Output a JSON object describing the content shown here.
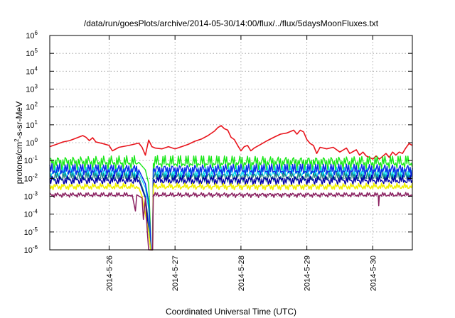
{
  "chart_data": {
    "type": "line",
    "title": "/data/run/goesPlots/archive/2014-05-30/14:00/flux/../flux/5daysMoonFluxes.txt",
    "xlabel": "Coordinated Universal Time (UTC)",
    "ylabel": {
      "prefix": "protons/cm",
      "sup": "2",
      "suffix": "-s-sr-MeV"
    },
    "y_scale": "log",
    "ylim": [
      1e-06,
      1000000.0
    ],
    "xlim": [
      25.1,
      30.6
    ],
    "y_ticks": [
      {
        "value": 1e-06,
        "base": "10",
        "exp": "-6"
      },
      {
        "value": 1e-05,
        "base": "10",
        "exp": "-5"
      },
      {
        "value": 0.0001,
        "base": "10",
        "exp": "-4"
      },
      {
        "value": 0.001,
        "base": "10",
        "exp": "-3"
      },
      {
        "value": 0.01,
        "base": "10",
        "exp": "-2"
      },
      {
        "value": 0.1,
        "base": "10",
        "exp": "-1"
      },
      {
        "value": 1,
        "base": "10",
        "exp": "0"
      },
      {
        "value": 10,
        "base": "10",
        "exp": "1"
      },
      {
        "value": 100,
        "base": "10",
        "exp": "2"
      },
      {
        "value": 1000,
        "base": "10",
        "exp": "3"
      },
      {
        "value": 10000,
        "base": "10",
        "exp": "4"
      },
      {
        "value": 100000,
        "base": "10",
        "exp": "5"
      },
      {
        "value": 1000000,
        "base": "10",
        "exp": "6"
      }
    ],
    "x_ticks": [
      {
        "value": 26,
        "label": "2014-5-26"
      },
      {
        "value": 27,
        "label": "2014-5-27"
      },
      {
        "value": 28,
        "label": "2014-5-28"
      },
      {
        "value": 29,
        "label": "2014-5-29"
      },
      {
        "value": 30,
        "label": "2014-5-30"
      }
    ],
    "grid": true,
    "series": [
      {
        "color": "#e8141c",
        "width": 1.6,
        "points": [
          [
            25.1,
            0.6
          ],
          [
            25.2,
            0.8
          ],
          [
            25.3,
            1.1
          ],
          [
            25.4,
            1.3
          ],
          [
            25.5,
            1.8
          ],
          [
            25.6,
            2.5
          ],
          [
            25.65,
            2.0
          ],
          [
            25.7,
            1.3
          ],
          [
            25.75,
            1.9
          ],
          [
            25.8,
            1.1
          ],
          [
            25.9,
            0.9
          ],
          [
            26.0,
            0.7
          ],
          [
            26.05,
            0.35
          ],
          [
            26.15,
            0.55
          ],
          [
            26.3,
            0.7
          ],
          [
            26.45,
            0.95
          ],
          [
            26.5,
            0.55
          ],
          [
            26.55,
            0.2
          ],
          [
            26.6,
            1.4
          ],
          [
            26.65,
            0.6
          ],
          [
            26.7,
            0.5
          ],
          [
            26.8,
            0.45
          ],
          [
            26.9,
            0.6
          ],
          [
            27.0,
            0.45
          ],
          [
            27.1,
            0.6
          ],
          [
            27.2,
            0.8
          ],
          [
            27.3,
            1.2
          ],
          [
            27.4,
            1.6
          ],
          [
            27.5,
            2.5
          ],
          [
            27.6,
            4.5
          ],
          [
            27.65,
            7.0
          ],
          [
            27.7,
            9.0
          ],
          [
            27.75,
            6.0
          ],
          [
            27.8,
            5.0
          ],
          [
            27.85,
            2.0
          ],
          [
            27.9,
            1.5
          ],
          [
            27.95,
            0.7
          ],
          [
            28.0,
            0.35
          ],
          [
            28.05,
            0.6
          ],
          [
            28.1,
            0.7
          ],
          [
            28.15,
            0.35
          ],
          [
            28.2,
            0.5
          ],
          [
            28.3,
            0.8
          ],
          [
            28.4,
            1.3
          ],
          [
            28.5,
            2.0
          ],
          [
            28.6,
            3.0
          ],
          [
            28.7,
            3.5
          ],
          [
            28.8,
            5.0
          ],
          [
            28.85,
            3.0
          ],
          [
            28.9,
            5.0
          ],
          [
            28.95,
            4.0
          ],
          [
            29.0,
            1.5
          ],
          [
            29.05,
            0.9
          ],
          [
            29.1,
            0.7
          ],
          [
            29.15,
            0.25
          ],
          [
            29.2,
            0.55
          ],
          [
            29.3,
            0.45
          ],
          [
            29.4,
            0.55
          ],
          [
            29.5,
            0.3
          ],
          [
            29.6,
            0.5
          ],
          [
            29.65,
            0.25
          ],
          [
            29.75,
            0.4
          ],
          [
            29.8,
            0.2
          ],
          [
            29.85,
            0.3
          ],
          [
            29.9,
            0.18
          ],
          [
            29.95,
            0.15
          ],
          [
            30.0,
            0.12
          ],
          [
            30.05,
            0.18
          ],
          [
            30.1,
            0.12
          ],
          [
            30.2,
            0.25
          ],
          [
            30.25,
            0.15
          ],
          [
            30.3,
            0.3
          ],
          [
            30.35,
            0.2
          ],
          [
            30.4,
            0.3
          ],
          [
            30.45,
            0.25
          ],
          [
            30.5,
            0.5
          ],
          [
            30.55,
            0.9
          ],
          [
            30.6,
            0.7
          ]
        ]
      },
      {
        "color": "#18e818",
        "width": 1.4,
        "base": 0.08,
        "amp": 0.45,
        "phase": 0.3,
        "dip": [
          [
            26.45,
            0.08
          ],
          [
            26.55,
            0.03
          ],
          [
            26.6,
            0.005
          ],
          [
            26.64,
            1e-06
          ],
          [
            26.66,
            1e-06
          ],
          [
            26.67,
            0.07
          ]
        ]
      },
      {
        "color": "#00d8f0",
        "width": 1.2,
        "base": 0.022,
        "amp": 0.35,
        "phase": 1.1,
        "dip": [
          [
            26.45,
            0.02
          ],
          [
            26.55,
            0.003
          ],
          [
            26.6,
            0.0002
          ],
          [
            26.64,
            1e-06
          ],
          [
            26.66,
            1e-06
          ],
          [
            26.67,
            0.02
          ]
        ]
      },
      {
        "color": "#0a2ee8",
        "width": 1.5,
        "base": 0.03,
        "amp": 0.4,
        "phase": 2.2,
        "dip": [
          [
            26.45,
            0.03
          ],
          [
            26.55,
            0.005
          ],
          [
            26.6,
            0.0005
          ],
          [
            26.64,
            1e-06
          ],
          [
            26.66,
            1e-06
          ],
          [
            26.67,
            0.03
          ]
        ]
      },
      {
        "color": "#1a8080",
        "width": 1.2,
        "base": 0.012,
        "amp": 0.3,
        "phase": 0.7,
        "dip": [
          [
            26.45,
            0.012
          ],
          [
            26.55,
            0.001
          ],
          [
            26.6,
            3e-05
          ],
          [
            26.63,
            1e-06
          ],
          [
            26.66,
            1e-06
          ],
          [
            26.67,
            0.01
          ]
        ]
      },
      {
        "color": "#0000a8",
        "width": 1.4,
        "base": 0.008,
        "amp": 0.3,
        "phase": 1.7,
        "dip": [
          [
            26.45,
            0.008
          ],
          [
            26.55,
            0.0008
          ],
          [
            26.6,
            1e-05
          ],
          [
            26.63,
            1e-06
          ],
          [
            26.66,
            1e-06
          ],
          [
            26.67,
            0.008
          ]
        ]
      },
      {
        "color": "#f0f000",
        "width": 1.6,
        "base": 0.0035,
        "amp": 0.2,
        "phase": 2.9,
        "dip": [
          [
            26.45,
            0.003
          ],
          [
            26.5,
            0.001
          ],
          [
            26.55,
            0.0001
          ],
          [
            26.6,
            1e-05
          ],
          [
            26.63,
            1e-06
          ],
          [
            26.66,
            1e-06
          ],
          [
            26.67,
            0.003
          ]
        ]
      },
      {
        "color": "#8a2060",
        "width": 1.5,
        "base": 0.0012,
        "amp": 0.15,
        "phase": 0.5,
        "dip": [
          [
            26.35,
            0.0012
          ],
          [
            26.4,
            0.00015
          ],
          [
            26.42,
            0.0012
          ],
          [
            26.5,
            0.0008
          ],
          [
            26.52,
            5e-05
          ],
          [
            26.55,
            0.0008
          ],
          [
            26.58,
            1e-05
          ],
          [
            26.6,
            1e-06
          ],
          [
            26.66,
            1e-06
          ],
          [
            26.67,
            0.0012
          ]
        ],
        "extra": [
          [
            30.09,
            0.0003
          ],
          [
            30.12,
            0.0012
          ]
        ]
      }
    ]
  }
}
